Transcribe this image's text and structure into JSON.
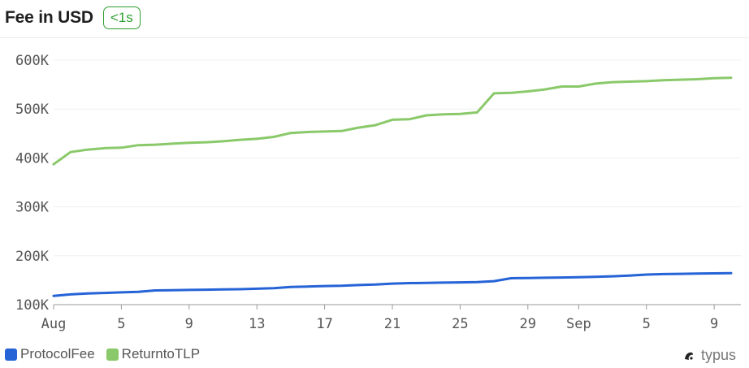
{
  "header": {
    "title": "Fee in USD",
    "badge": "<1s"
  },
  "brand": {
    "name": "typus",
    "icon": "typus-logo-icon"
  },
  "colors": {
    "ProtocolFee": "#2563d6",
    "ReturntoTLP": "#8ac96a",
    "grid": "#f0f0f0",
    "badge": "#2f9e2f"
  },
  "legend": [
    {
      "label": "ProtocolFee",
      "color": "#2563d6"
    },
    {
      "label": "ReturntoTLP",
      "color": "#8ac96a"
    }
  ],
  "chart_data": {
    "type": "line",
    "title": "Fee in USD",
    "xlabel": "",
    "ylabel": "",
    "ylim": [
      100000,
      600000
    ],
    "grid": true,
    "legend_position": "bottom-left",
    "y_ticks": [
      {
        "value": 100000,
        "label": "100K"
      },
      {
        "value": 200000,
        "label": "200K"
      },
      {
        "value": 300000,
        "label": "300K"
      },
      {
        "value": 400000,
        "label": "400K"
      },
      {
        "value": 500000,
        "label": "500K"
      },
      {
        "value": 600000,
        "label": "600K"
      }
    ],
    "x_ticks": [
      {
        "date": "2024-08-01",
        "label": "Aug"
      },
      {
        "date": "2024-08-05",
        "label": "5"
      },
      {
        "date": "2024-08-09",
        "label": "9"
      },
      {
        "date": "2024-08-13",
        "label": "13"
      },
      {
        "date": "2024-08-17",
        "label": "17"
      },
      {
        "date": "2024-08-21",
        "label": "21"
      },
      {
        "date": "2024-08-25",
        "label": "25"
      },
      {
        "date": "2024-08-29",
        "label": "29"
      },
      {
        "date": "2024-09-01",
        "label": "Sep"
      },
      {
        "date": "2024-09-05",
        "label": "5"
      },
      {
        "date": "2024-09-09",
        "label": "9"
      }
    ],
    "x": [
      "2024-08-01",
      "2024-08-02",
      "2024-08-03",
      "2024-08-04",
      "2024-08-05",
      "2024-08-06",
      "2024-08-07",
      "2024-08-08",
      "2024-08-09",
      "2024-08-10",
      "2024-08-11",
      "2024-08-12",
      "2024-08-13",
      "2024-08-14",
      "2024-08-15",
      "2024-08-16",
      "2024-08-17",
      "2024-08-18",
      "2024-08-19",
      "2024-08-20",
      "2024-08-21",
      "2024-08-22",
      "2024-08-23",
      "2024-08-24",
      "2024-08-25",
      "2024-08-26",
      "2024-08-27",
      "2024-08-28",
      "2024-08-29",
      "2024-08-30",
      "2024-08-31",
      "2024-09-01",
      "2024-09-02",
      "2024-09-03",
      "2024-09-04",
      "2024-09-05",
      "2024-09-06",
      "2024-09-07",
      "2024-09-08",
      "2024-09-09",
      "2024-09-10"
    ],
    "series": [
      {
        "name": "ProtocolFee",
        "color": "#2563d6",
        "values": [
          118000,
          121000,
          123000,
          124000,
          125000,
          126000,
          129000,
          129500,
          130000,
          130500,
          131000,
          131500,
          132500,
          133500,
          136000,
          137000,
          138000,
          138500,
          140000,
          141000,
          143000,
          144000,
          144500,
          145000,
          145500,
          146000,
          148000,
          154000,
          154500,
          155000,
          155500,
          156000,
          157000,
          158000,
          159500,
          161500,
          162500,
          163000,
          163500,
          164000,
          164500
        ]
      },
      {
        "name": "ReturntoTLP",
        "color": "#8ac96a",
        "values": [
          387000,
          412000,
          417000,
          420000,
          421000,
          426000,
          427000,
          429000,
          431000,
          432000,
          434000,
          437000,
          439000,
          443000,
          451000,
          453000,
          454000,
          455000,
          462000,
          467000,
          478000,
          479000,
          487000,
          489000,
          490000,
          493000,
          532000,
          533000,
          536000,
          540000,
          546000,
          546000,
          552000,
          555000,
          556000,
          557000,
          559000,
          560000,
          561000,
          563000,
          564000
        ]
      }
    ]
  }
}
